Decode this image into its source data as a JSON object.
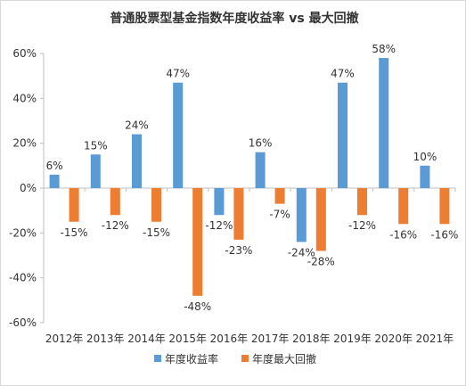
{
  "chart_data": {
    "type": "bar",
    "title": "普通股票型基金指数年度收益率 vs 最大回撤",
    "categories": [
      "2012年",
      "2013年",
      "2014年",
      "2015年",
      "2016年",
      "2017年",
      "2018年",
      "2019年",
      "2020年",
      "2021年"
    ],
    "series": [
      {
        "name": "年度收益率",
        "color": "#5b9bd5",
        "values": [
          6,
          15,
          24,
          47,
          -12,
          16,
          -24,
          47,
          58,
          10
        ],
        "labels": [
          "6%",
          "15%",
          "24%",
          "47%",
          "-12%",
          "16%",
          "-24%",
          "47%",
          "58%",
          "10%"
        ]
      },
      {
        "name": "年度最大回撤",
        "color": "#ed7d31",
        "values": [
          -15,
          -12,
          -15,
          -48,
          -23,
          -7,
          -28,
          -12,
          -16,
          -16
        ],
        "labels": [
          "-15%",
          "-12%",
          "-15%",
          "-48%",
          "-23%",
          "-7%",
          "-28%",
          "-12%",
          "-16%",
          "-16%"
        ]
      }
    ],
    "ylim": [
      -60,
      60
    ],
    "yticks": [
      60,
      40,
      20,
      0,
      -20,
      -40,
      -60
    ],
    "ytick_labels": [
      "60%",
      "40%",
      "20%",
      "0%",
      "-20%",
      "-40%",
      "-60%"
    ],
    "grid": false,
    "legend_position": "bottom"
  }
}
